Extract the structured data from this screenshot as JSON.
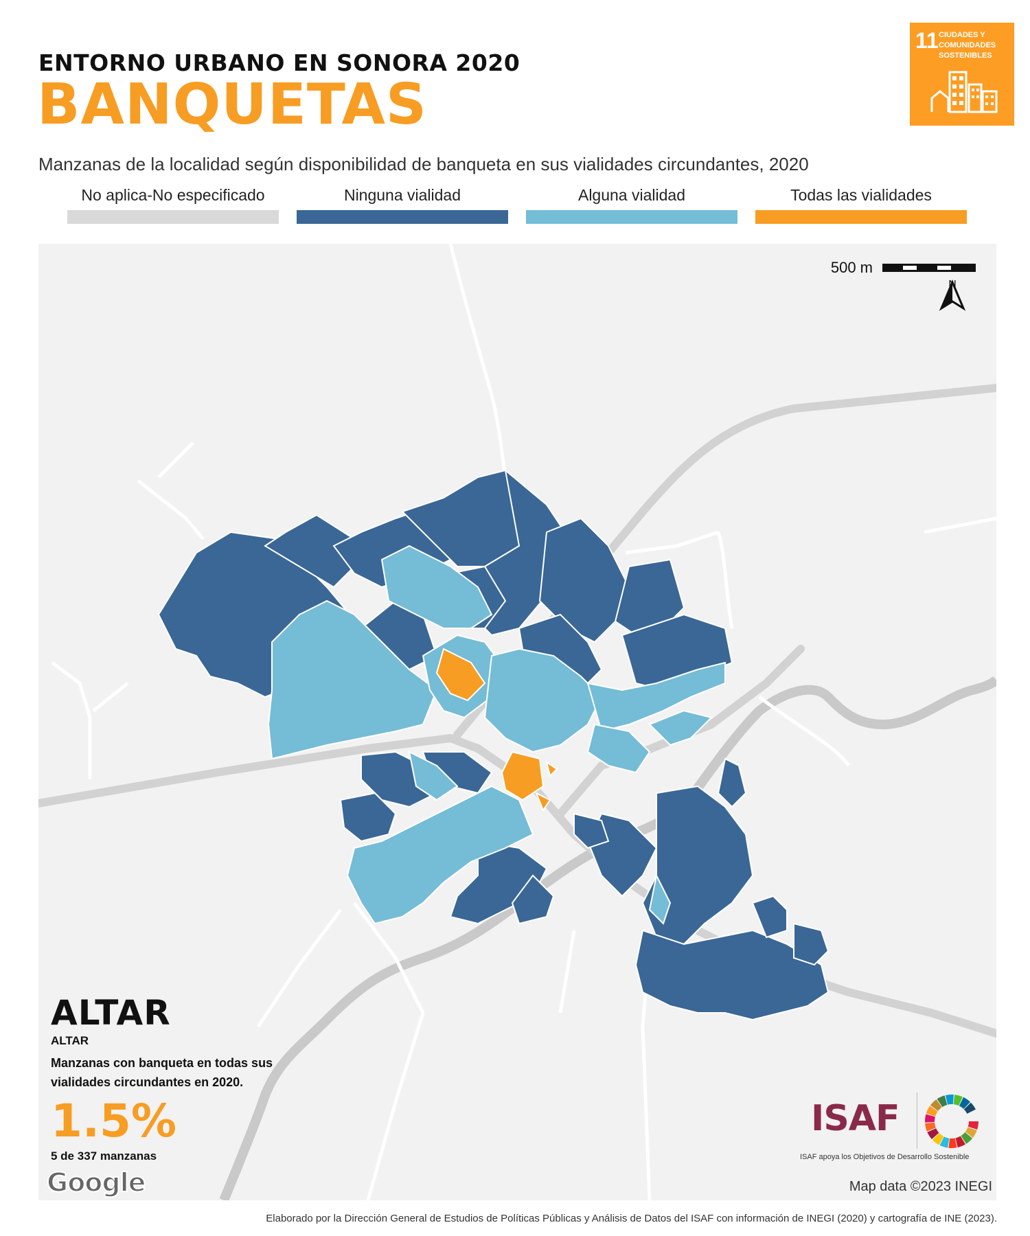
{
  "header": {
    "super_title": "ENTORNO URBANO EN SONORA 2020",
    "title": "BANQUETAS",
    "subtitle": "Manzanas de la localidad según disponibilidad de banqueta en sus vialidades circundantes, 2020"
  },
  "sdg_badge": {
    "number": "11",
    "text": "CIUDADES Y COMUNIDADES SOSTENIBLES",
    "color": "#fd9d24"
  },
  "legend": [
    {
      "label": "No aplica-No especificado",
      "color": "#d9d9d9"
    },
    {
      "label": "Ninguna vialidad",
      "color": "#3a6795"
    },
    {
      "label": "Alguna vialidad",
      "color": "#75bcd6"
    },
    {
      "label": "Todas las vialidades",
      "color": "#f79d23"
    }
  ],
  "map": {
    "scale_label": "500 m",
    "north_label": "N",
    "attribution": "Map data ©2023 INEGI",
    "provider_logo": "Google",
    "colors": {
      "background": "#f2f2f2",
      "road": "#ffffff",
      "highway": "#d2d2d2",
      "river": "#c9c9c9",
      "none": "#3a6795",
      "some": "#75bcd6",
      "all": "#f79d23"
    }
  },
  "locality": {
    "name": "ALTAR",
    "municipality": "ALTAR",
    "description": "Manzanas con banqueta en todas sus vialidades circundantes en 2020.",
    "percentage": "1.5%",
    "count_text": "5 de 337 manzanas"
  },
  "logos": {
    "isaf": "ISAF",
    "isaf_tagline": "ISAF apoya los Objetivos de Desarrollo Sostenible"
  },
  "footer": {
    "credit": "Elaborado por la Dirección General de Estudios de Políticas Públicas y Análisis de Datos del ISAF con información de INEGI (2020) y cartografía de INE (2023)."
  }
}
